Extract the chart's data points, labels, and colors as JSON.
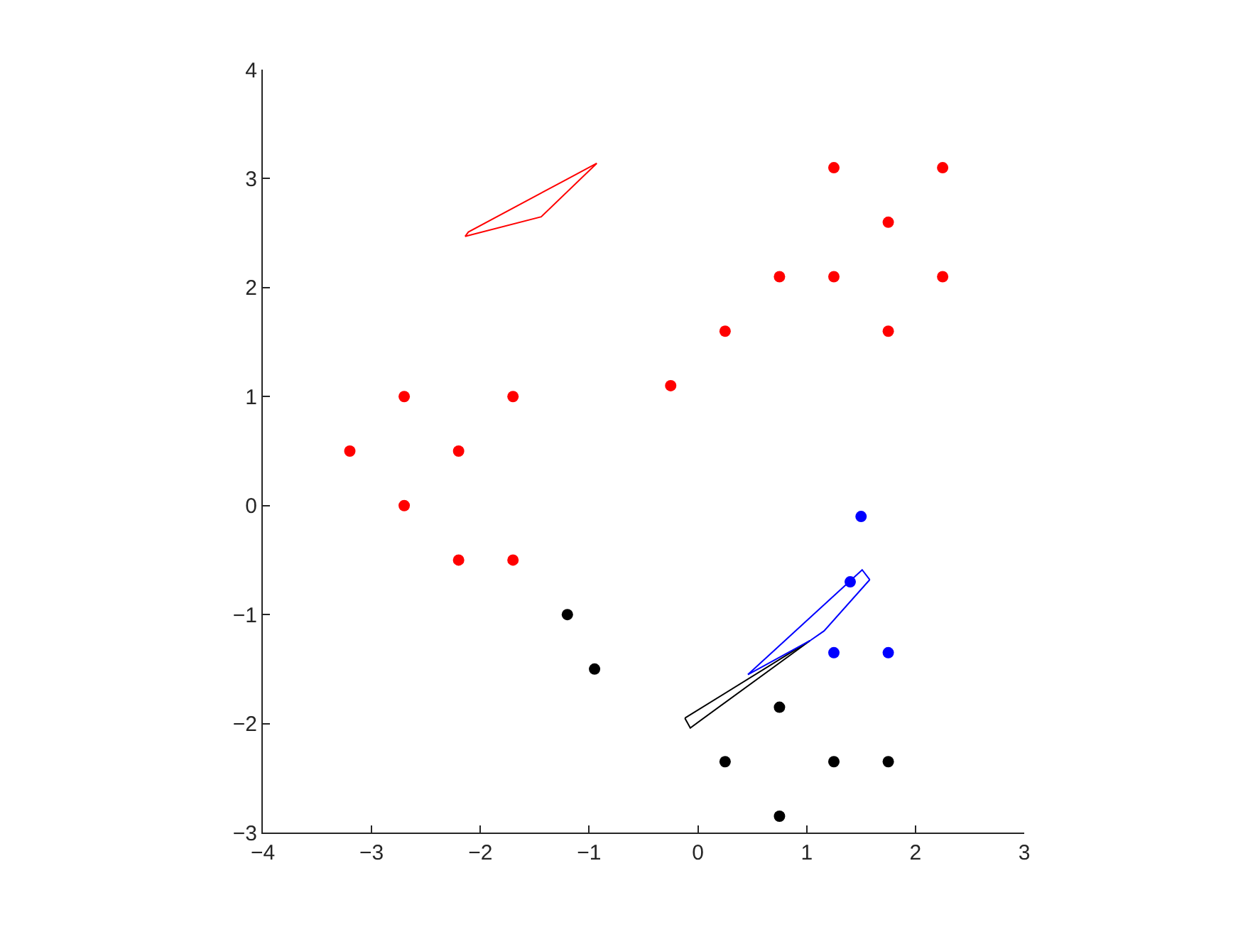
{
  "chart_data": {
    "type": "scatter",
    "marker": "circle",
    "grid": false,
    "xlim": [
      -4,
      3
    ],
    "ylim": [
      -3,
      4
    ],
    "xticks": [
      -4,
      -3,
      -2,
      -1,
      0,
      1,
      2,
      3
    ],
    "yticks": [
      -3,
      -2,
      -1,
      0,
      1,
      2,
      3,
      4
    ],
    "series": [
      {
        "color": "#ff0000",
        "x": [
          -3.2,
          -2.7,
          -2.7,
          -2.2,
          -2.2,
          -1.7,
          -1.7,
          -0.25,
          0.25,
          0.75,
          1.25,
          1.25,
          1.75,
          1.75,
          2.25,
          2.25
        ],
        "values": [
          0.5,
          1,
          0,
          0.5,
          -0.5,
          1,
          -0.5,
          1.1,
          1.6,
          2.1,
          3.1,
          2.1,
          2.6,
          1.6,
          3.1,
          2.1
        ]
      },
      {
        "color": "#000000",
        "x": [
          -1.2,
          -0.95,
          0.75,
          0.25,
          1.25,
          1.75,
          0.75
        ],
        "values": [
          -1,
          -1.5,
          -1.85,
          -2.35,
          -2.35,
          -2.35,
          -2.85
        ]
      },
      {
        "color": "#0000ff",
        "x": [
          1.5,
          1.4,
          1.25,
          1.75
        ],
        "values": [
          -0.1,
          -0.7,
          -1.35,
          -1.35
        ]
      },
      {
        "type": "line",
        "marker": "none",
        "color": "#ff0000",
        "x": [
          -2.14,
          -2.11,
          -0.93
        ],
        "values": [
          2.47,
          2.51,
          3.14
        ]
      },
      {
        "type": "line",
        "marker": "none",
        "color": "#ff0000",
        "x": [
          -2.14,
          -1.44,
          -0.93
        ],
        "values": [
          2.47,
          2.65,
          3.14
        ]
      },
      {
        "type": "line",
        "marker": "none",
        "color": "#000000",
        "x": [
          -0.12,
          1.03
        ],
        "values": [
          -1.95,
          -1.24
        ]
      },
      {
        "type": "line",
        "marker": "none",
        "color": "#000000",
        "x": [
          -0.12,
          -0.07,
          1.03
        ],
        "values": [
          -1.95,
          -2.04,
          -1.24
        ]
      },
      {
        "type": "line",
        "marker": "none",
        "color": "#0000ff",
        "x": [
          0.46,
          1.51,
          1.58
        ],
        "values": [
          -1.55,
          -0.59,
          -0.68
        ]
      },
      {
        "type": "line",
        "marker": "none",
        "color": "#0000ff",
        "x": [
          0.46,
          1.03,
          1.16,
          1.58
        ],
        "values": [
          -1.55,
          -1.24,
          -1.15,
          -0.68
        ]
      }
    ]
  }
}
